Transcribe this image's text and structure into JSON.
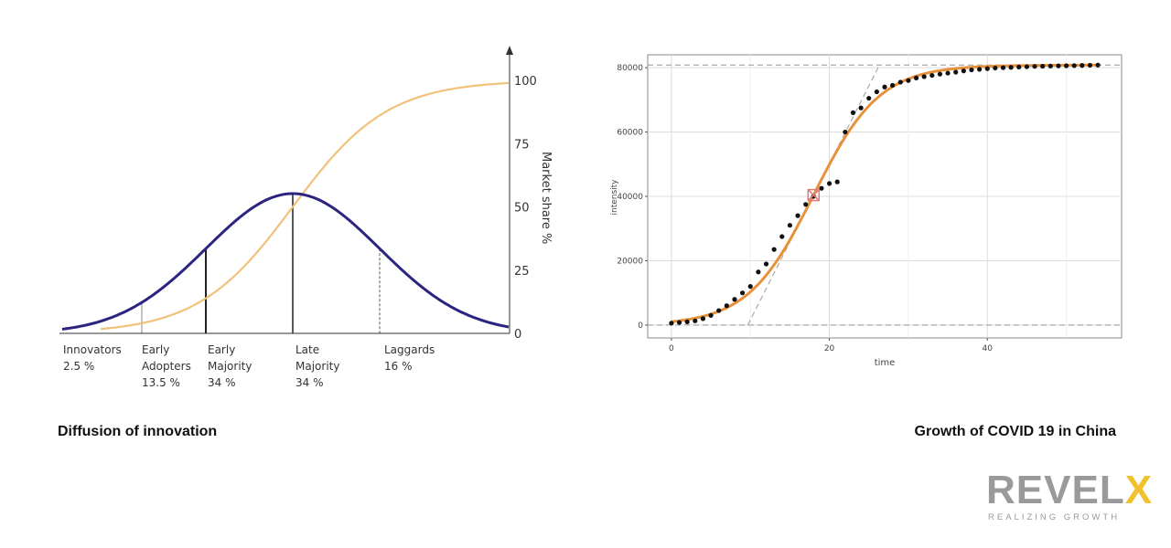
{
  "captions": {
    "left": "Diffusion of innovation",
    "right": "Growth of COVID 19 in China"
  },
  "logo": {
    "main": "REVEL",
    "accent": "X",
    "tagline": "REALIZING GROWTH",
    "colors": {
      "main": "#9a9a9a",
      "accent": "#f2c12e"
    }
  },
  "chart_data": [
    {
      "type": "line",
      "title": "",
      "ylabel": "Market share %",
      "ylim": [
        0,
        100
      ],
      "yticks": [
        "0",
        "25",
        "50",
        "75",
        "100"
      ],
      "curves": [
        {
          "name": "adoption",
          "shape": "bell",
          "color": "#2b2580"
        },
        {
          "name": "market share",
          "shape": "s-curve",
          "color": "#f0c27b"
        }
      ],
      "segments": [
        {
          "line1": "Innovators",
          "line2": "2.5 %",
          "line3": ""
        },
        {
          "line1": "Early",
          "line2": "Adopters",
          "line3": "13.5 %"
        },
        {
          "line1": "Early",
          "line2": "Majority",
          "line3": "34 %"
        },
        {
          "line1": "Late",
          "line2": "Majority",
          "line3": "34 %"
        },
        {
          "line1": "Laggards",
          "line2": "16 %",
          "line3": ""
        }
      ]
    },
    {
      "type": "scatter",
      "xlabel": "time",
      "ylabel": "intensity",
      "xlim": [
        -3,
        57
      ],
      "ylim": [
        -4000,
        84000
      ],
      "xticks": [
        "0",
        "20",
        "40"
      ],
      "yticks": [
        "0",
        "20000",
        "40000",
        "60000",
        "80000"
      ],
      "colors": {
        "fit": "#e8913a",
        "points": "#111111",
        "marker": "#e07a7a"
      },
      "fit": {
        "L": 80800,
        "k": 0.24,
        "x0": 18
      },
      "inflection": {
        "x": 18,
        "y": 40400
      },
      "points": {
        "x": [
          0,
          1,
          2,
          3,
          4,
          5,
          6,
          7,
          8,
          9,
          10,
          11,
          12,
          13,
          14,
          15,
          16,
          17,
          18,
          19,
          20,
          21,
          22,
          23,
          24,
          25,
          26,
          27,
          28,
          29,
          30,
          31,
          32,
          33,
          34,
          35,
          36,
          37,
          38,
          39,
          40,
          41,
          42,
          43,
          44,
          45,
          46,
          47,
          48,
          49,
          50,
          51,
          52,
          53,
          54
        ],
        "y": [
          600,
          800,
          1000,
          1300,
          2000,
          3000,
          4500,
          6000,
          8000,
          10000,
          12000,
          16500,
          19000,
          23500,
          27500,
          31000,
          34000,
          37500,
          40000,
          42500,
          44000,
          44500,
          60000,
          66000,
          67500,
          70500,
          72500,
          74000,
          74500,
          75500,
          76000,
          76800,
          77200,
          77600,
          78000,
          78300,
          78600,
          79000,
          79300,
          79500,
          79700,
          79900,
          80000,
          80100,
          80200,
          80300,
          80400,
          80450,
          80500,
          80550,
          80600,
          80650,
          80700,
          80750,
          80800
        ]
      }
    }
  ]
}
